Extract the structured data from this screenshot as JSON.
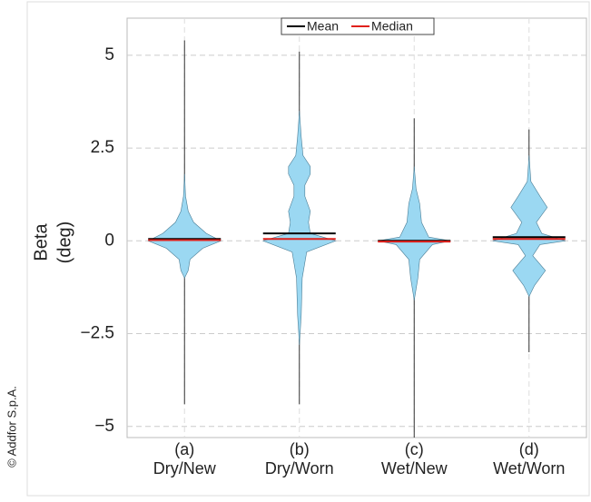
{
  "chart_data": {
    "type": "violin",
    "categories": [
      "(a)",
      "(b)",
      "(c)",
      "(d)"
    ],
    "conditions": [
      "Dry/New",
      "Dry/Worn",
      "Wet/New",
      "Wet/Worn"
    ],
    "ylabel": "Beta",
    "ylabel_unit": "(deg)",
    "ylim": [
      -5.3,
      6.0
    ],
    "yticks": [
      {
        "value": -5,
        "label": "−5"
      },
      {
        "value": -2.5,
        "label": "−2.5"
      },
      0,
      2.5,
      5
    ],
    "grid": true,
    "legend": "top",
    "violin_color": "#9bd8f2",
    "whisker_color": "#333333",
    "series": [
      {
        "name": "Mean",
        "color": "#000000",
        "values": [
          0.05,
          0.2,
          0.0,
          0.1
        ]
      },
      {
        "name": "Median",
        "color": "#e0201b",
        "values": [
          0.02,
          0.05,
          -0.02,
          0.05
        ]
      }
    ],
    "min": [
      -4.4,
      -4.4,
      -5.3,
      -3.0
    ],
    "max": [
      5.4,
      5.1,
      3.3,
      3.0
    ],
    "density": [
      {
        "y": [
          -1.0,
          -0.8,
          -0.5,
          -0.2,
          0,
          0.2,
          0.5,
          0.8,
          1.2,
          1.8
        ],
        "width": [
          0,
          0.1,
          0.15,
          0.5,
          1.0,
          0.6,
          0.25,
          0.1,
          0.03,
          0
        ]
      },
      {
        "y": [
          -2.8,
          -2,
          -1,
          -0.3,
          0,
          0.2,
          0.5,
          0.8,
          1.2,
          1.5,
          1.8,
          2.0,
          2.3,
          2.8,
          3.5
        ],
        "width": [
          0,
          0.05,
          0.08,
          0.2,
          1.0,
          0.3,
          0.25,
          0.3,
          0.15,
          0.15,
          0.3,
          0.3,
          0.1,
          0.05,
          0
        ]
      },
      {
        "y": [
          -1.6,
          -1,
          -0.5,
          -0.1,
          0,
          0.1,
          0.5,
          1.0,
          1.4,
          2.0
        ],
        "width": [
          0,
          0.1,
          0.15,
          0.5,
          1.0,
          0.4,
          0.2,
          0.15,
          0.05,
          0
        ]
      },
      {
        "y": [
          -1.5,
          -1.2,
          -0.8,
          -0.4,
          -0.1,
          0,
          0.2,
          0.5,
          0.9,
          1.2,
          1.6,
          2.3
        ],
        "width": [
          0,
          0.15,
          0.45,
          0.1,
          0.3,
          1.0,
          0.35,
          0.2,
          0.5,
          0.3,
          0.05,
          0
        ]
      }
    ]
  },
  "watermark": "© Addfor S.p.A."
}
